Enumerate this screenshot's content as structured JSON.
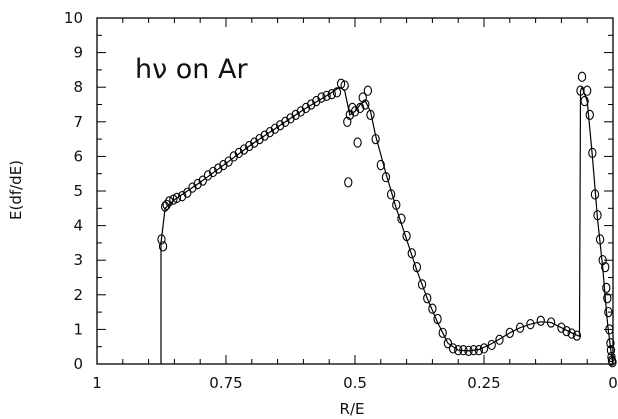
{
  "chart_data": {
    "type": "scatter",
    "title": "",
    "annotation": "hν on Ar",
    "xlabel": "R/E",
    "ylabel": "E(df/dE)",
    "xlim": [
      1,
      0
    ],
    "ylim": [
      0,
      10
    ],
    "x_ticks": [
      1,
      0.75,
      0.5,
      0.25,
      0
    ],
    "x_tick_labels": [
      "1",
      "0.75",
      "0.5",
      "0.25",
      "0"
    ],
    "y_ticks": [
      0,
      1,
      2,
      3,
      4,
      5,
      6,
      7,
      8,
      9,
      10
    ],
    "y_tick_labels": [
      "0",
      "1",
      "2",
      "3",
      "4",
      "5",
      "6",
      "7",
      "8",
      "9",
      "10"
    ],
    "grid": false,
    "series": [
      {
        "style": "open circles",
        "points": [
          [
            0.875,
            3.6
          ],
          [
            0.872,
            3.4
          ],
          [
            0.868,
            4.55
          ],
          [
            0.865,
            4.6
          ],
          [
            0.86,
            4.7
          ],
          [
            0.852,
            4.75
          ],
          [
            0.845,
            4.8
          ],
          [
            0.835,
            4.85
          ],
          [
            0.825,
            4.95
          ],
          [
            0.815,
            5.1
          ],
          [
            0.805,
            5.2
          ],
          [
            0.795,
            5.3
          ],
          [
            0.785,
            5.45
          ],
          [
            0.775,
            5.55
          ],
          [
            0.765,
            5.65
          ],
          [
            0.755,
            5.75
          ],
          [
            0.745,
            5.85
          ],
          [
            0.735,
            6.0
          ],
          [
            0.725,
            6.1
          ],
          [
            0.715,
            6.2
          ],
          [
            0.705,
            6.3
          ],
          [
            0.695,
            6.4
          ],
          [
            0.685,
            6.5
          ],
          [
            0.675,
            6.6
          ],
          [
            0.665,
            6.7
          ],
          [
            0.655,
            6.8
          ],
          [
            0.645,
            6.9
          ],
          [
            0.635,
            7.0
          ],
          [
            0.625,
            7.1
          ],
          [
            0.615,
            7.2
          ],
          [
            0.605,
            7.3
          ],
          [
            0.595,
            7.4
          ],
          [
            0.585,
            7.5
          ],
          [
            0.575,
            7.6
          ],
          [
            0.565,
            7.7
          ],
          [
            0.555,
            7.75
          ],
          [
            0.545,
            7.8
          ],
          [
            0.535,
            7.85
          ],
          [
            0.527,
            8.1
          ],
          [
            0.52,
            8.05
          ],
          [
            0.515,
            7.0
          ],
          [
            0.513,
            5.25
          ],
          [
            0.51,
            7.2
          ],
          [
            0.505,
            7.4
          ],
          [
            0.5,
            7.3
          ],
          [
            0.495,
            6.4
          ],
          [
            0.49,
            7.4
          ],
          [
            0.485,
            7.7
          ],
          [
            0.48,
            7.5
          ],
          [
            0.475,
            7.9
          ],
          [
            0.47,
            7.2
          ],
          [
            0.46,
            6.5
          ],
          [
            0.45,
            5.75
          ],
          [
            0.44,
            5.4
          ],
          [
            0.43,
            4.9
          ],
          [
            0.42,
            4.6
          ],
          [
            0.41,
            4.2
          ],
          [
            0.4,
            3.7
          ],
          [
            0.39,
            3.2
          ],
          [
            0.38,
            2.8
          ],
          [
            0.37,
            2.3
          ],
          [
            0.36,
            1.9
          ],
          [
            0.35,
            1.6
          ],
          [
            0.34,
            1.3
          ],
          [
            0.33,
            0.9
          ],
          [
            0.32,
            0.6
          ],
          [
            0.31,
            0.45
          ],
          [
            0.3,
            0.4
          ],
          [
            0.29,
            0.4
          ],
          [
            0.28,
            0.38
          ],
          [
            0.27,
            0.4
          ],
          [
            0.26,
            0.4
          ],
          [
            0.25,
            0.45
          ],
          [
            0.235,
            0.55
          ],
          [
            0.22,
            0.7
          ],
          [
            0.2,
            0.9
          ],
          [
            0.18,
            1.05
          ],
          [
            0.16,
            1.15
          ],
          [
            0.14,
            1.25
          ],
          [
            0.12,
            1.2
          ],
          [
            0.1,
            1.05
          ],
          [
            0.09,
            0.95
          ],
          [
            0.08,
            0.88
          ],
          [
            0.07,
            0.82
          ],
          [
            0.063,
            7.9
          ],
          [
            0.06,
            8.3
          ],
          [
            0.055,
            7.6
          ],
          [
            0.05,
            7.9
          ],
          [
            0.045,
            7.2
          ],
          [
            0.04,
            6.1
          ],
          [
            0.035,
            4.9
          ],
          [
            0.03,
            4.3
          ],
          [
            0.025,
            3.6
          ],
          [
            0.02,
            3.0
          ],
          [
            0.015,
            2.8
          ],
          [
            0.013,
            2.2
          ],
          [
            0.011,
            1.9
          ],
          [
            0.009,
            1.5
          ],
          [
            0.007,
            1.0
          ],
          [
            0.005,
            0.6
          ],
          [
            0.004,
            0.4
          ],
          [
            0.003,
            0.2
          ],
          [
            0.002,
            0.1
          ],
          [
            0.001,
            0.05
          ]
        ]
      },
      {
        "style": "solid line",
        "points": [
          [
            0.876,
            0.0
          ],
          [
            0.876,
            3.5
          ],
          [
            0.868,
            4.5
          ],
          [
            0.85,
            4.75
          ],
          [
            0.8,
            5.25
          ],
          [
            0.75,
            5.8
          ],
          [
            0.7,
            6.35
          ],
          [
            0.65,
            6.85
          ],
          [
            0.6,
            7.35
          ],
          [
            0.55,
            7.8
          ],
          [
            0.53,
            8.0
          ],
          [
            0.52,
            7.9
          ],
          [
            0.51,
            7.2
          ],
          [
            0.5,
            7.3
          ],
          [
            0.49,
            7.5
          ],
          [
            0.48,
            7.6
          ],
          [
            0.47,
            7.3
          ],
          [
            0.46,
            6.6
          ],
          [
            0.44,
            5.5
          ],
          [
            0.42,
            4.5
          ],
          [
            0.4,
            3.6
          ],
          [
            0.38,
            2.7
          ],
          [
            0.36,
            1.9
          ],
          [
            0.34,
            1.2
          ],
          [
            0.32,
            0.6
          ],
          [
            0.3,
            0.4
          ],
          [
            0.28,
            0.38
          ],
          [
            0.26,
            0.42
          ],
          [
            0.24,
            0.55
          ],
          [
            0.22,
            0.72
          ],
          [
            0.2,
            0.9
          ],
          [
            0.18,
            1.05
          ],
          [
            0.16,
            1.15
          ],
          [
            0.14,
            1.22
          ],
          [
            0.12,
            1.2
          ],
          [
            0.1,
            1.05
          ],
          [
            0.08,
            0.9
          ],
          [
            0.065,
            0.8
          ],
          [
            0.063,
            7.9
          ],
          [
            0.06,
            8.0
          ],
          [
            0.05,
            7.6
          ],
          [
            0.04,
            6.0
          ],
          [
            0.03,
            4.2
          ],
          [
            0.02,
            2.8
          ],
          [
            0.015,
            1.9
          ],
          [
            0.01,
            1.1
          ],
          [
            0.005,
            0.5
          ],
          [
            0.002,
            0.15
          ],
          [
            0.0,
            0.0
          ]
        ]
      }
    ]
  }
}
